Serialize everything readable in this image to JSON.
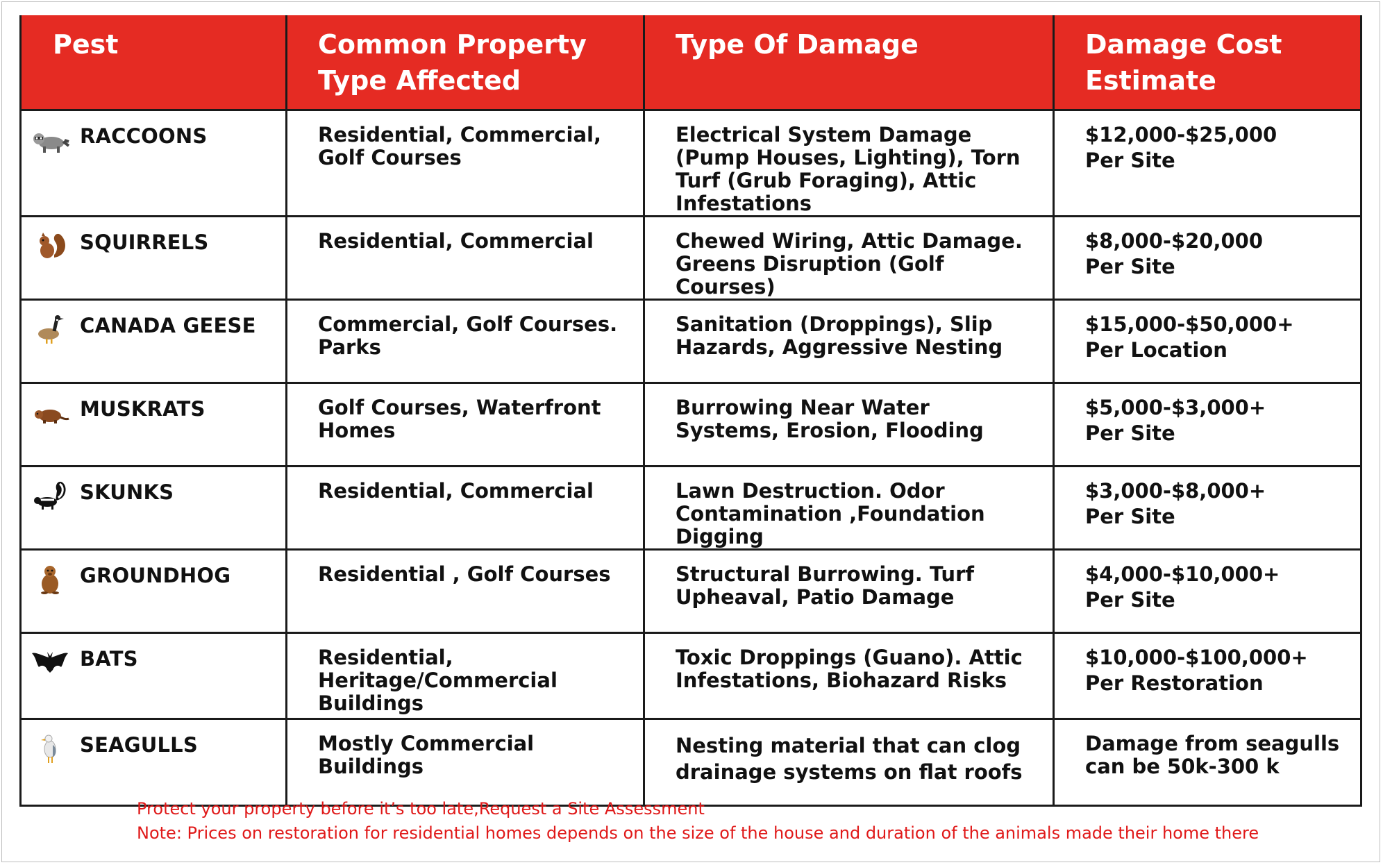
{
  "header": {
    "col1": "Pest",
    "col2": "Common Property Type Affected",
    "col3": "Type Of Damage",
    "col4": "Damage Cost Estimate"
  },
  "rows": [
    {
      "icon": "raccoon-icon",
      "pest": "RACCOONS",
      "property": "Residential, Commercial, Golf Courses",
      "damage": "Electrical System Damage (Pump Houses, Lighting), Torn Turf (Grub Foraging), Attic Infestations",
      "cost": "$12,000-$25,000",
      "cost_unit": "Per Site"
    },
    {
      "icon": "squirrel-icon",
      "pest": "SQUIRRELS",
      "property": "Residential, Commercial",
      "damage": "Chewed Wiring, Attic Damage. Greens Disruption (Golf Courses)",
      "cost": "$8,000-$20,000",
      "cost_unit": "Per Site"
    },
    {
      "icon": "goose-icon",
      "pest": "CANADA GEESE",
      "property": "Commercial, Golf Courses. Parks",
      "damage": "Sanitation (Droppings), Slip Hazards, Aggressive Nesting",
      "cost": "$15,000-$50,000+",
      "cost_unit": "Per Location"
    },
    {
      "icon": "muskrat-icon",
      "pest": "MUSKRATS",
      "property": "Golf Courses, Waterfront Homes",
      "damage": "Burrowing Near Water Systems, Erosion, Flooding",
      "cost": "$5,000-$3,000+",
      "cost_unit": "Per Site"
    },
    {
      "icon": "skunk-icon",
      "pest": "SKUNKS",
      "property": "Residential, Commercial",
      "damage": "Lawn Destruction. Odor Contamination ,Foundation Digging",
      "cost": "$3,000-$8,000+",
      "cost_unit": "Per Site"
    },
    {
      "icon": "groundhog-icon",
      "pest": "GROUNDHOG",
      "property": "Residential , Golf Courses",
      "damage": "Structural Burrowing. Turf Upheaval, Patio Damage",
      "cost": "$4,000-$10,000+",
      "cost_unit": "Per Site"
    },
    {
      "icon": "bat-icon",
      "pest": "BATS",
      "property": "Residential, Heritage/Commercial Buildings",
      "damage": "Toxic Droppings (Guano). Attic Infestations, Biohazard Risks",
      "cost": "$10,000-$100,000+",
      "cost_unit": "Per Restoration"
    },
    {
      "icon": "seagull-icon",
      "pest": "SEAGULLS",
      "property": "Mostly Commercial Buildings",
      "damage": "Nesting material that can clog drainage systems on flat roofs",
      "cost": "Damage from seagulls can be 50k-300 k",
      "cost_unit": ""
    }
  ],
  "footer": {
    "line1": "Protect your property before it’s too late,Request a Site Assessment",
    "line2": "Note: Prices on restoration for residential homes depends on the size of the house and duration of the animals made their home there"
  },
  "colors": {
    "header_bg": "#e52b23",
    "footer_text": "#e01919",
    "border": "#1a1a1a"
  }
}
